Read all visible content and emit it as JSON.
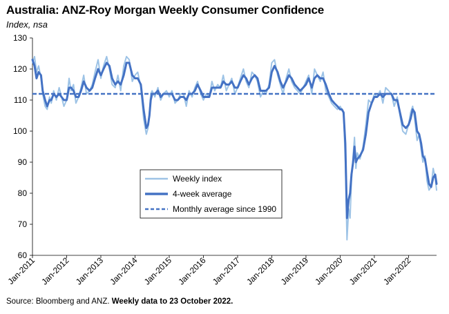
{
  "source": {
    "plain": "Source: Bloomberg and ANZ. ",
    "bold": "Weekly data to 23 October 2022."
  },
  "chart_data": {
    "type": "line",
    "title": "Australia: ANZ-Roy Morgan Weekly Consumer Confidence",
    "subtitle": "Index, nsa",
    "xlabel": "",
    "ylabel": "",
    "ylim": [
      60,
      130
    ],
    "yticks": [
      60,
      70,
      80,
      90,
      100,
      110,
      120,
      130
    ],
    "xlim": [
      2011.0,
      2022.82
    ],
    "xticks": [
      {
        "label": "Jan-2011",
        "x": 2011
      },
      {
        "label": "Jan-2012",
        "x": 2012
      },
      {
        "label": "Jan-2013",
        "x": 2013
      },
      {
        "label": "Jan-2014",
        "x": 2014
      },
      {
        "label": "Jan-2015",
        "x": 2015
      },
      {
        "label": "Jan-2016",
        "x": 2016
      },
      {
        "label": "Jan-2017",
        "x": 2017
      },
      {
        "label": "Jan-2018",
        "x": 2018
      },
      {
        "label": "Jan-2019",
        "x": 2019
      },
      {
        "label": "Jan-2020",
        "x": 2020
      },
      {
        "label": "Jan-2021",
        "x": 2021
      },
      {
        "label": "Jan-2022",
        "x": 2022
      }
    ],
    "grid": false,
    "legend_position": "center-left",
    "series": [
      {
        "name": "Weekly index",
        "color": "#9dc3e6",
        "style": "solid",
        "x": [
          2011.0,
          2011.06,
          2011.12,
          2011.18,
          2011.25,
          2011.3,
          2011.37,
          2011.43,
          2011.5,
          2011.55,
          2011.62,
          2011.7,
          2011.78,
          2011.85,
          2011.92,
          2012.0,
          2012.07,
          2012.13,
          2012.2,
          2012.27,
          2012.35,
          2012.42,
          2012.5,
          2012.58,
          2012.67,
          2012.75,
          2012.83,
          2012.92,
          2013.0,
          2013.08,
          2013.17,
          2013.25,
          2013.33,
          2013.42,
          2013.5,
          2013.58,
          2013.67,
          2013.75,
          2013.83,
          2013.92,
          2014.0,
          2014.08,
          2014.17,
          2014.25,
          2014.33,
          2014.38,
          2014.42,
          2014.46,
          2014.5,
          2014.58,
          2014.67,
          2014.75,
          2014.83,
          2014.92,
          2015.0,
          2015.08,
          2015.17,
          2015.25,
          2015.33,
          2015.42,
          2015.5,
          2015.58,
          2015.67,
          2015.75,
          2015.83,
          2015.92,
          2016.0,
          2016.08,
          2016.17,
          2016.25,
          2016.33,
          2016.42,
          2016.5,
          2016.58,
          2016.67,
          2016.75,
          2016.83,
          2016.92,
          2017.0,
          2017.08,
          2017.17,
          2017.25,
          2017.33,
          2017.42,
          2017.5,
          2017.58,
          2017.67,
          2017.75,
          2017.83,
          2017.92,
          2018.0,
          2018.08,
          2018.17,
          2018.25,
          2018.33,
          2018.42,
          2018.5,
          2018.58,
          2018.67,
          2018.75,
          2018.83,
          2018.92,
          2019.0,
          2019.08,
          2019.17,
          2019.25,
          2019.33,
          2019.42,
          2019.5,
          2019.58,
          2019.67,
          2019.75,
          2019.83,
          2019.92,
          2020.0,
          2020.05,
          2020.1,
          2020.15,
          2020.2,
          2020.25,
          2020.29,
          2020.33,
          2020.38,
          2020.42,
          2020.46,
          2020.5,
          2020.58,
          2020.67,
          2020.75,
          2020.83,
          2020.92,
          2021.0,
          2021.08,
          2021.17,
          2021.25,
          2021.33,
          2021.42,
          2021.5,
          2021.58,
          2021.67,
          2021.75,
          2021.83,
          2021.92,
          2022.0,
          2022.06,
          2022.12,
          2022.18,
          2022.25,
          2022.31,
          2022.37,
          2022.42,
          2022.48,
          2022.54,
          2022.6,
          2022.66,
          2022.72,
          2022.78,
          2022.82
        ],
        "values": [
          122,
          124,
          119,
          121,
          117,
          112,
          108,
          107,
          111,
          109,
          113,
          110,
          114,
          111,
          108,
          110,
          117,
          113,
          115,
          109,
          111,
          114,
          118,
          112,
          113,
          115,
          119,
          123,
          117,
          121,
          124,
          120,
          115,
          114,
          118,
          113,
          121,
          124,
          123,
          116,
          118,
          119,
          114,
          104,
          99,
          101,
          106,
          112,
          113,
          111,
          114,
          110,
          112,
          113,
          111,
          113,
          109,
          110,
          112,
          112,
          108,
          113,
          111,
          114,
          116,
          112,
          110,
          112,
          111,
          116,
          113,
          115,
          114,
          118,
          113,
          115,
          117,
          112,
          114,
          117,
          120,
          116,
          114,
          119,
          118,
          116,
          111,
          113,
          112,
          115,
          122,
          123,
          118,
          115,
          112,
          117,
          120,
          116,
          114,
          113,
          112,
          114,
          116,
          118,
          112,
          120,
          118,
          116,
          119,
          113,
          111,
          109,
          108,
          107,
          108,
          107,
          106,
          90,
          65,
          75,
          72,
          84,
          92,
          98,
          88,
          93,
          91,
          95,
          102,
          110,
          109,
          112,
          111,
          113,
          109,
          114,
          113,
          112,
          108,
          111,
          105,
          100,
          99,
          102,
          106,
          108,
          104,
          97,
          99,
          94,
          90,
          92,
          84,
          81,
          82,
          88,
          85,
          81
        ],
        "values_note": "values estimated from chart"
      },
      {
        "name": "4-week average",
        "color": "#4472c4",
        "style": "solid-thick",
        "x": [
          2011.0,
          2011.06,
          2011.12,
          2011.18,
          2011.25,
          2011.3,
          2011.37,
          2011.43,
          2011.5,
          2011.55,
          2011.62,
          2011.7,
          2011.78,
          2011.85,
          2011.92,
          2012.0,
          2012.07,
          2012.13,
          2012.2,
          2012.27,
          2012.35,
          2012.42,
          2012.5,
          2012.58,
          2012.67,
          2012.75,
          2012.83,
          2012.92,
          2013.0,
          2013.08,
          2013.17,
          2013.25,
          2013.33,
          2013.42,
          2013.5,
          2013.58,
          2013.67,
          2013.75,
          2013.83,
          2013.92,
          2014.0,
          2014.08,
          2014.17,
          2014.25,
          2014.33,
          2014.38,
          2014.42,
          2014.46,
          2014.5,
          2014.58,
          2014.67,
          2014.75,
          2014.83,
          2014.92,
          2015.0,
          2015.08,
          2015.17,
          2015.25,
          2015.33,
          2015.42,
          2015.5,
          2015.58,
          2015.67,
          2015.75,
          2015.83,
          2015.92,
          2016.0,
          2016.08,
          2016.17,
          2016.25,
          2016.33,
          2016.42,
          2016.5,
          2016.58,
          2016.67,
          2016.75,
          2016.83,
          2016.92,
          2017.0,
          2017.08,
          2017.17,
          2017.25,
          2017.33,
          2017.42,
          2017.5,
          2017.58,
          2017.67,
          2017.75,
          2017.83,
          2017.92,
          2018.0,
          2018.08,
          2018.17,
          2018.25,
          2018.33,
          2018.42,
          2018.5,
          2018.58,
          2018.67,
          2018.75,
          2018.83,
          2018.92,
          2019.0,
          2019.08,
          2019.17,
          2019.25,
          2019.33,
          2019.42,
          2019.5,
          2019.58,
          2019.67,
          2019.75,
          2019.83,
          2019.92,
          2020.0,
          2020.05,
          2020.1,
          2020.15,
          2020.2,
          2020.25,
          2020.29,
          2020.33,
          2020.38,
          2020.42,
          2020.46,
          2020.5,
          2020.58,
          2020.67,
          2020.75,
          2020.83,
          2020.92,
          2021.0,
          2021.08,
          2021.17,
          2021.25,
          2021.33,
          2021.42,
          2021.5,
          2021.58,
          2021.67,
          2021.75,
          2021.83,
          2021.92,
          2022.0,
          2022.06,
          2022.12,
          2022.18,
          2022.25,
          2022.31,
          2022.37,
          2022.42,
          2022.48,
          2022.54,
          2022.6,
          2022.66,
          2022.72,
          2022.78,
          2022.82
        ],
        "values": [
          123,
          121,
          117,
          119,
          118,
          113,
          110,
          108,
          110,
          110,
          112,
          111,
          112,
          111,
          110,
          110,
          114,
          114,
          113,
          111,
          111,
          113,
          116,
          114,
          113,
          114,
          117,
          120,
          118,
          120,
          122,
          121,
          117,
          115,
          116,
          115,
          118,
          122,
          122,
          118,
          117,
          117,
          115,
          107,
          101,
          102,
          105,
          110,
          112,
          112,
          113,
          111,
          112,
          112,
          112,
          112,
          110,
          110,
          111,
          111,
          110,
          112,
          112,
          113,
          115,
          113,
          111,
          111,
          111,
          114,
          114,
          114,
          114,
          116,
          115,
          115,
          116,
          114,
          114,
          116,
          118,
          117,
          115,
          117,
          118,
          117,
          113,
          113,
          113,
          114,
          119,
          121,
          119,
          116,
          114,
          116,
          118,
          117,
          115,
          114,
          113,
          114,
          115,
          117,
          114,
          117,
          118,
          117,
          117,
          115,
          112,
          110,
          109,
          108,
          107,
          107,
          106,
          96,
          72,
          78,
          80,
          86,
          90,
          95,
          90,
          91,
          92,
          94,
          99,
          106,
          109,
          111,
          111,
          112,
          111,
          112,
          112,
          112,
          110,
          110,
          106,
          102,
          101,
          102,
          104,
          107,
          106,
          100,
          99,
          96,
          92,
          91,
          87,
          83,
          82,
          85,
          86,
          83
        ],
        "values_note": "values estimated from chart"
      },
      {
        "name": "Monthly average since 1990",
        "color": "#4472c4",
        "style": "dashed",
        "x": [
          2011.0,
          2022.82
        ],
        "values": [
          112,
          112
        ]
      }
    ]
  }
}
